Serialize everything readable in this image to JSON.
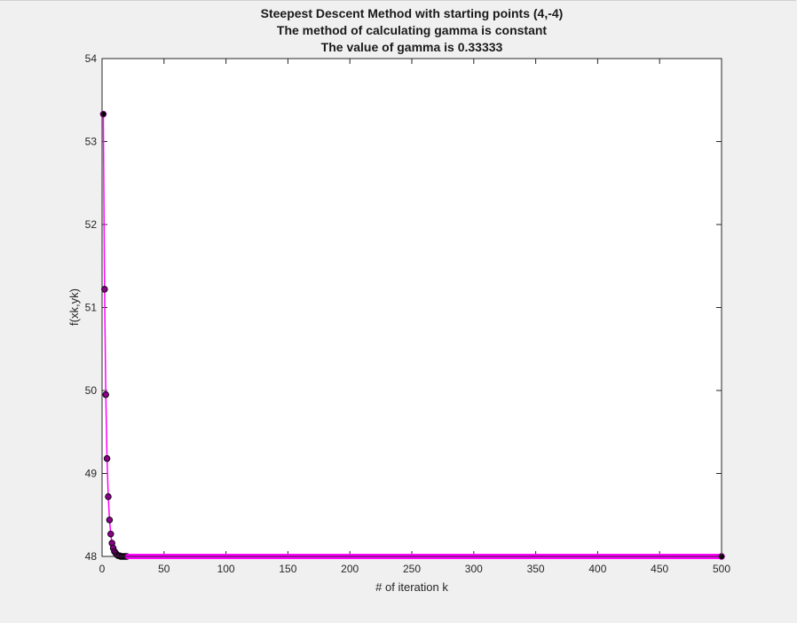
{
  "chart_data": {
    "type": "line",
    "title_lines": [
      "Steepest Descent Method with starting points (4,-4)",
      "The method of calculating gamma is constant",
      "The value of gamma is 0.33333"
    ],
    "xlabel": "# of iteration k",
    "ylabel": "f(xk,yk)",
    "xlim": [
      0,
      500
    ],
    "ylim": [
      48,
      54
    ],
    "xticks": [
      0,
      50,
      100,
      150,
      200,
      250,
      300,
      350,
      400,
      450,
      500
    ],
    "yticks": [
      48,
      49,
      50,
      51,
      52,
      53,
      54
    ],
    "grid": false,
    "legend": "none",
    "series": [
      {
        "line_color": "#ff00ff",
        "marker_face": "#8b008b",
        "marker_edge": "#000000",
        "x": [
          1,
          2,
          3,
          4,
          5,
          6,
          7,
          8,
          9,
          10,
          11,
          12,
          13,
          14,
          15,
          16,
          17,
          18,
          19,
          20
        ],
        "y": [
          53.33,
          51.22,
          49.95,
          49.18,
          48.72,
          48.44,
          48.27,
          48.16,
          48.1,
          48.06,
          48.04,
          48.02,
          48.01,
          48.01,
          48.0,
          48.0,
          48.0,
          48.0,
          48.0,
          48.0
        ],
        "tail": {
          "from": 21,
          "to": 500,
          "value": 48.0
        }
      }
    ]
  }
}
